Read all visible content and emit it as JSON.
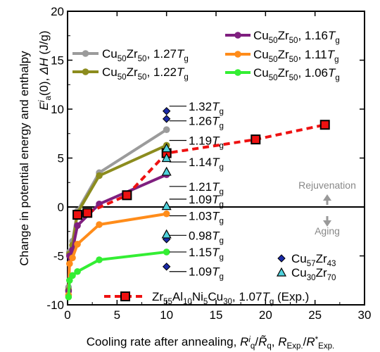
{
  "chart_data": {
    "type": "line",
    "xlabel": "Cooling rate after annealing, R^i_q/R̃_q, R_Exp./R*_Exp.",
    "ylabel": "Change in potential energy and enthalpy",
    "ylabel2": "E^i_a(0), ΔH (J/g)",
    "xlim": [
      0,
      30
    ],
    "ylim": [
      -10,
      20
    ],
    "xticks": [
      0,
      5,
      10,
      15,
      20,
      25,
      30
    ],
    "yticks": [
      -10,
      -5,
      0,
      5,
      10,
      15,
      20
    ],
    "grid": false,
    "zero_line": true,
    "series": [
      {
        "name": "Cu50Zr50, 1.27Tg",
        "color": "#9b9b9b",
        "x": [
          0.1,
          0.2,
          0.5,
          1,
          3.2,
          10
        ],
        "y": [
          -8.2,
          -4.6,
          -3.5,
          -0.4,
          3.5,
          7.9
        ]
      },
      {
        "name": "Cu50Zr50, 1.22Tg",
        "color": "#8c8c1e",
        "x": [
          0.1,
          0.2,
          0.5,
          1,
          3.2,
          10
        ],
        "y": [
          -8.5,
          -4.8,
          -3.9,
          -0.6,
          3.2,
          6.3
        ]
      },
      {
        "name": "Cu50Zr50, 1.16Tg",
        "color": "#7f1f7f",
        "x": [
          0.1,
          0.2,
          0.5,
          1,
          3.2,
          10
        ],
        "y": [
          -8.6,
          -5.0,
          -4.4,
          -1.9,
          0.3,
          3.3
        ]
      },
      {
        "name": "Cu50Zr50, 1.11Tg",
        "color": "#ff8c1a",
        "x": [
          0.1,
          0.2,
          0.5,
          1,
          3.2,
          10
        ],
        "y": [
          -9.0,
          -5.8,
          -5.2,
          -3.8,
          -1.8,
          -0.7
        ]
      },
      {
        "name": "Cu50Zr50, 1.06Tg",
        "color": "#33ee33",
        "x": [
          0.1,
          0.2,
          0.5,
          1,
          3.2,
          10
        ],
        "y": [
          -9.2,
          -7.5,
          -7.0,
          -6.6,
          -5.4,
          -4.6
        ]
      },
      {
        "name": "Zr55Al10Ni5Cu30, 1.07Tg (Exp.)",
        "color": "#ee1111",
        "x": [
          1,
          2,
          6,
          10,
          19,
          26
        ],
        "y": [
          -0.8,
          -0.6,
          1.2,
          5.5,
          6.9,
          8.4
        ]
      }
    ],
    "points": {
      "cu57zr43": {
        "name": "Cu57Zr43",
        "color": "#1a2aa8",
        "x": 10,
        "y": [
          9.8,
          9.0,
          -3.3,
          -6.1
        ]
      },
      "cu30zr70": {
        "name": "Cu30Zr70",
        "color": "#4fd2dc",
        "x": 10,
        "y": [
          6.0,
          5.0,
          3.6,
          0.1,
          -2.8
        ]
      }
    },
    "annotations": [
      {
        "text": "1.32",
        "y": 10.3
      },
      {
        "text": "1.26",
        "y": 8.8
      },
      {
        "text": "1.19",
        "y": 6.8
      },
      {
        "text": "1.14",
        "y": 4.6
      },
      {
        "text": "1.21",
        "y": 2.1
      },
      {
        "text": "1.09",
        "y": 0.8
      },
      {
        "text": "1.03",
        "y": -0.9
      },
      {
        "text": "0.98",
        "y": -2.9
      },
      {
        "text": "1.15",
        "y": -4.6
      },
      {
        "text": "1.09",
        "y": -6.6
      }
    ],
    "rejuvenation_label": "Rejuvenation",
    "aging_label": "Aging"
  }
}
